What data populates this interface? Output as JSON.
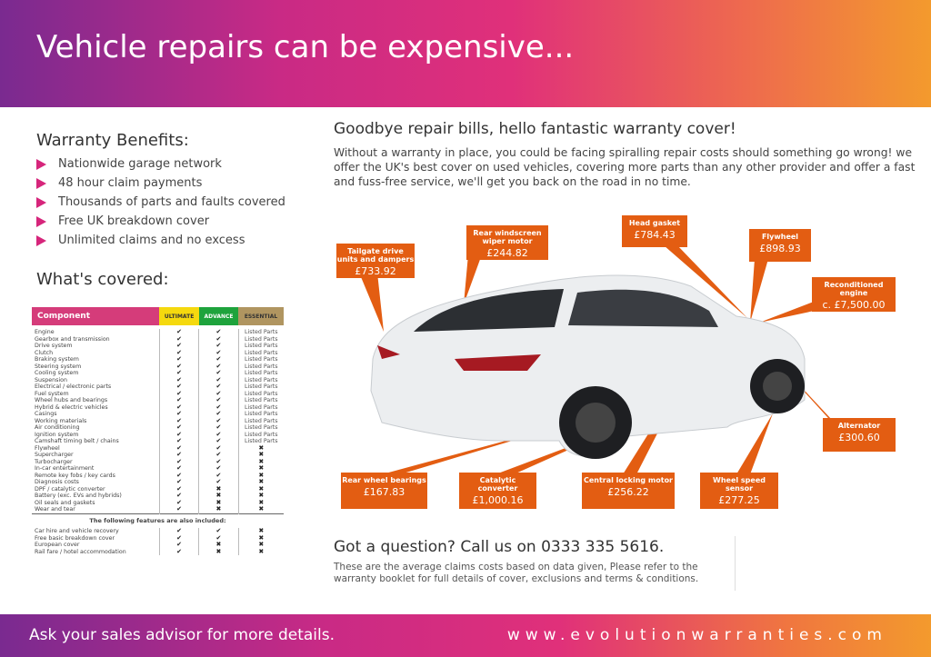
{
  "header": {
    "title": "Vehicle repairs can be expensive..."
  },
  "benefits": {
    "title": "Warranty Benefits:",
    "items": [
      "Nationwide garage network",
      "48 hour claim payments",
      "Thousands of parts and faults covered",
      "Free UK breakdown cover",
      "Unlimited claims and no excess"
    ]
  },
  "covered": {
    "title": "What's covered:",
    "columns": [
      "Component",
      "ULTIMATE",
      "ADVANCE",
      "ESSENTIAL"
    ],
    "rows": [
      [
        "Engine",
        "✔",
        "✔",
        "Listed Parts"
      ],
      [
        "Gearbox and transmission",
        "✔",
        "✔",
        "Listed Parts"
      ],
      [
        "Drive system",
        "✔",
        "✔",
        "Listed Parts"
      ],
      [
        "Clutch",
        "✔",
        "✔",
        "Listed Parts"
      ],
      [
        "Braking system",
        "✔",
        "✔",
        "Listed Parts"
      ],
      [
        "Steering system",
        "✔",
        "✔",
        "Listed Parts"
      ],
      [
        "Cooling system",
        "✔",
        "✔",
        "Listed Parts"
      ],
      [
        "Suspension",
        "✔",
        "✔",
        "Listed Parts"
      ],
      [
        "Electrical / electronic parts",
        "✔",
        "✔",
        "Listed Parts"
      ],
      [
        "Fuel system",
        "✔",
        "✔",
        "Listed Parts"
      ],
      [
        "Wheel hubs and bearings",
        "✔",
        "✔",
        "Listed Parts"
      ],
      [
        "Hybrid & electric vehicles",
        "✔",
        "✔",
        "Listed Parts"
      ],
      [
        "Casings",
        "✔",
        "✔",
        "Listed Parts"
      ],
      [
        "Working materials",
        "✔",
        "✔",
        "Listed Parts"
      ],
      [
        "Air conditioning",
        "✔",
        "✔",
        "Listed Parts"
      ],
      [
        "Ignition system",
        "✔",
        "✔",
        "Listed Parts"
      ],
      [
        "Camshaft timing belt / chains",
        "✔",
        "✔",
        "Listed Parts"
      ],
      [
        "Flywheel",
        "✔",
        "✔",
        "✖"
      ],
      [
        "Supercharger",
        "✔",
        "✔",
        "✖"
      ],
      [
        "Turbocharger",
        "✔",
        "✔",
        "✖"
      ],
      [
        "In-car entertainment",
        "✔",
        "✔",
        "✖"
      ],
      [
        "Remote key fobs / key cards",
        "✔",
        "✔",
        "✖"
      ],
      [
        "Diagnosis costs",
        "✔",
        "✔",
        "✖"
      ],
      [
        "DPF / catalytic converter",
        "✔",
        "✖",
        "✖"
      ],
      [
        "Battery (exc. EVs and hybrids)",
        "✔",
        "✖",
        "✖"
      ],
      [
        "Oil seals and gaskets",
        "✔",
        "✖",
        "✖"
      ],
      [
        "Wear and tear",
        "✔",
        "✖",
        "✖"
      ]
    ],
    "extras_title": "The following features are also included:",
    "extras": [
      [
        "Car hire and vehicle recovery",
        "✔",
        "✔",
        "✖"
      ],
      [
        "Free basic breakdown cover",
        "✔",
        "✔",
        "✖"
      ],
      [
        "European cover",
        "✔",
        "✖",
        "✖"
      ],
      [
        "Rail fare / hotel accommodation",
        "✔",
        "✖",
        "✖"
      ]
    ]
  },
  "main": {
    "title": "Goodbye repair bills, hello fantastic warranty cover!",
    "intro": "Without a warranty in place, you could be facing spiralling repair costs should something go wrong! we offer the UK's best cover on used vehicles, covering more parts than any other provider and offer a fast and fuss-free service, we'll get you back on the road in no time."
  },
  "callouts": [
    {
      "label": "Tailgate drive units and dampers",
      "price": "£733.92"
    },
    {
      "label": "Rear windscreen wiper motor",
      "price": "£244.82"
    },
    {
      "label": "Head gasket",
      "price": "£784.43"
    },
    {
      "label": "Flywheel",
      "price": "£898.93"
    },
    {
      "label": "Reconditioned engine",
      "price": "c. £7,500.00"
    },
    {
      "label": "Alternator",
      "price": "£300.60"
    },
    {
      "label": "Rear wheel bearings",
      "price": "£167.83"
    },
    {
      "label": "Catalytic converter",
      "price": "£1,000.16"
    },
    {
      "label": "Central locking motor",
      "price": "£256.22"
    },
    {
      "label": "Wheel speed sensor",
      "price": "£277.25"
    }
  ],
  "contact": {
    "question": "Got a question? Call us on 0333 335 5616.",
    "note": "These are the average claims costs based on data given, Please refer to the warranty booklet for full details of cover, exclusions and terms & conditions."
  },
  "footer": {
    "left": "Ask your sales advisor for more details.",
    "right": "www.evolutionwarranties.com"
  },
  "colors": {
    "accent_orange": "#e35d12",
    "accent_pink": "#d6257b"
  }
}
